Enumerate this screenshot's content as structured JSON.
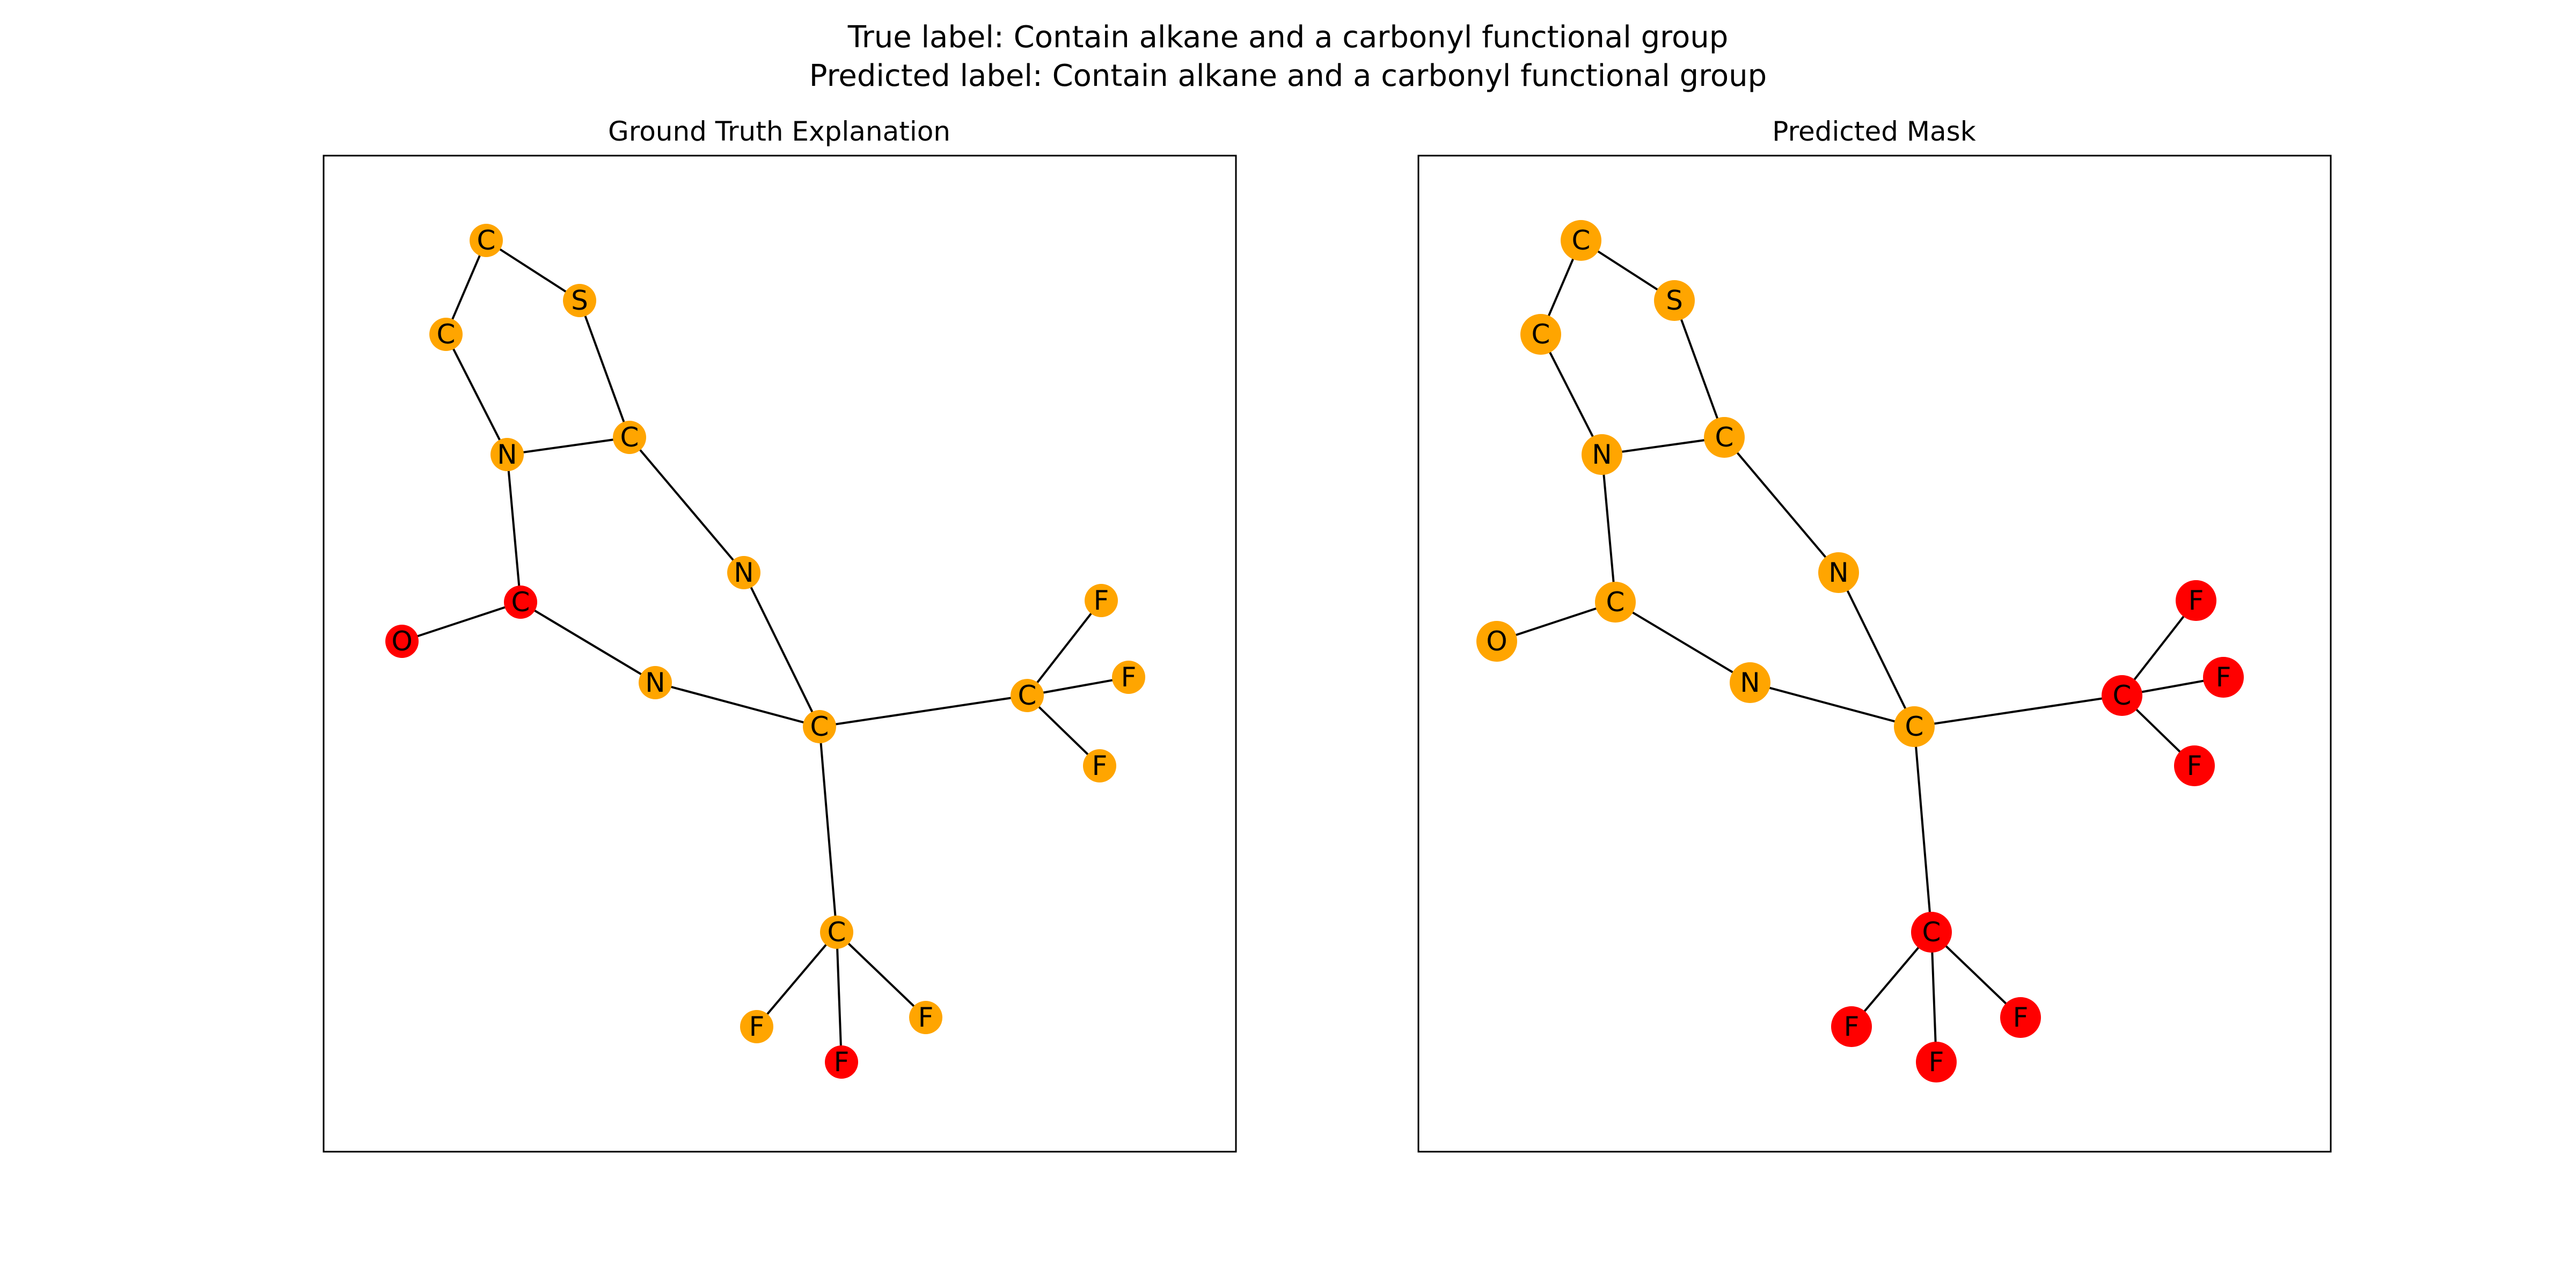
{
  "figure": {
    "suptitle_line1": "True label: Contain alkane and a carbonyl functional group",
    "suptitle_line2": "Predicted label: Contain alkane and a carbonyl functional group"
  },
  "colors": {
    "unmasked": "#FFA500",
    "masked": "#FF0000"
  },
  "molecule": {
    "nodes": [
      {
        "id": 0,
        "label": "C"
      },
      {
        "id": 1,
        "label": "S"
      },
      {
        "id": 2,
        "label": "C"
      },
      {
        "id": 3,
        "label": "N"
      },
      {
        "id": 4,
        "label": "C"
      },
      {
        "id": 5,
        "label": "N"
      },
      {
        "id": 6,
        "label": "C"
      },
      {
        "id": 7,
        "label": "O"
      },
      {
        "id": 8,
        "label": "N"
      },
      {
        "id": 9,
        "label": "C"
      },
      {
        "id": 10,
        "label": "C"
      },
      {
        "id": 11,
        "label": "F"
      },
      {
        "id": 12,
        "label": "F"
      },
      {
        "id": 13,
        "label": "F"
      },
      {
        "id": 14,
        "label": "C"
      },
      {
        "id": 15,
        "label": "F"
      },
      {
        "id": 16,
        "label": "F"
      },
      {
        "id": 17,
        "label": "F"
      }
    ],
    "edges": [
      [
        0,
        1
      ],
      [
        0,
        2
      ],
      [
        1,
        4
      ],
      [
        2,
        3
      ],
      [
        3,
        4
      ],
      [
        3,
        6
      ],
      [
        4,
        5
      ],
      [
        6,
        7
      ],
      [
        6,
        8
      ],
      [
        8,
        9
      ],
      [
        5,
        9
      ],
      [
        9,
        10
      ],
      [
        10,
        11
      ],
      [
        10,
        12
      ],
      [
        10,
        13
      ],
      [
        9,
        14
      ],
      [
        14,
        15
      ],
      [
        14,
        16
      ],
      [
        14,
        17
      ]
    ]
  },
  "panels": [
    {
      "title": "Ground Truth Explanation",
      "masked_nodes": [
        6,
        7,
        16
      ],
      "node_size": "small"
    },
    {
      "title": "Predicted Mask",
      "masked_nodes": [
        10,
        11,
        12,
        13,
        14,
        15,
        16,
        17
      ],
      "node_size": "large"
    }
  ]
}
